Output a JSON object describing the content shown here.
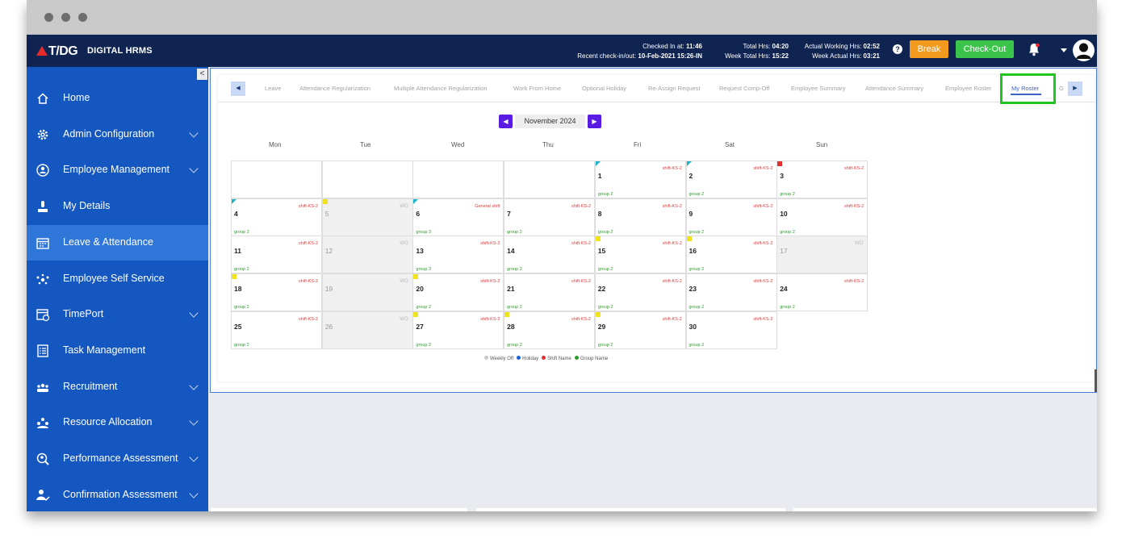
{
  "app": {
    "logo_text": "T/DG",
    "logo_subtitle": "DIGITAL HRMS"
  },
  "header": {
    "checked_in_label": "Checked In at:",
    "checked_in_value": "11:46",
    "recent_label": "Recent check-in/out:",
    "recent_value": "10-Feb-2021 15:26-IN",
    "total_hrs_label": "Total Hrs:",
    "total_hrs_value": "04:20",
    "week_total_label": "Week Total Hrs:",
    "week_total_value": "15:22",
    "actual_working_label": "Actual Working Hrs:",
    "actual_working_value": "02:52",
    "week_actual_label": "Week Actual Hrs:",
    "week_actual_value": "03:21",
    "help_glyph": "?",
    "break_label": "Break",
    "checkout_label": "Check-Out",
    "colors": {
      "bar": "#0f2451",
      "break": "#f39a1e",
      "checkout": "#3bc44a"
    }
  },
  "sidebar": {
    "collapse_glyph": "<",
    "items": [
      {
        "label": "Home",
        "icon": "home-icon",
        "chevron": false,
        "active": false
      },
      {
        "label": "Admin Configuration",
        "icon": "gear-icon",
        "chevron": true,
        "active": false
      },
      {
        "label": "Employee Management",
        "icon": "employee-icon",
        "chevron": true,
        "active": false
      },
      {
        "label": "My Details",
        "icon": "user-icon",
        "chevron": false,
        "active": false
      },
      {
        "label": "Leave & Attendance",
        "icon": "calendar-icon",
        "chevron": false,
        "active": true
      },
      {
        "label": "Employee Self Service",
        "icon": "people-network-icon",
        "chevron": false,
        "active": false
      },
      {
        "label": "TimePort",
        "icon": "calendar-clock-icon",
        "chevron": true,
        "active": false
      },
      {
        "label": "Task Management",
        "icon": "checklist-icon",
        "chevron": false,
        "active": false
      },
      {
        "label": "Recruitment",
        "icon": "group-icon",
        "chevron": true,
        "active": false
      },
      {
        "label": "Resource Allocation",
        "icon": "resource-icon",
        "chevron": true,
        "active": false
      },
      {
        "label": "Performance Assessment",
        "icon": "search-user-icon",
        "chevron": true,
        "active": false
      },
      {
        "label": "Confirmation Assessment",
        "icon": "user-check-icon",
        "chevron": true,
        "active": false
      }
    ]
  },
  "tabs": {
    "prev_glyph": "◀",
    "next_glyph": "▶",
    "items": [
      "Leave",
      "Attendance Regularization",
      "Multiple Attendance Regularization",
      "Work From Home",
      "Optional Holiday",
      "Re-Assign Request",
      "Request Comp-Off",
      "Employee Summary",
      "Attendance Summary",
      "Employee Roster",
      "My Roster",
      "G"
    ],
    "active": "My Roster"
  },
  "calendar": {
    "month_label": "November 2024",
    "prev_glyph": "◀",
    "next_glyph": "▶",
    "weekdays": [
      "Mon",
      "Tue",
      "Wed",
      "Thu",
      "Fri",
      "Sat",
      "Sun"
    ],
    "weekly_off_text": "WO",
    "days": [
      {
        "d": "1",
        "col": 4,
        "row": 0,
        "shift": "shift-KS-2",
        "group": "group 2",
        "flag": "tri"
      },
      {
        "d": "2",
        "col": 5,
        "row": 0,
        "shift": "shift-KS-2",
        "group": "group 2",
        "flag": "tri"
      },
      {
        "d": "3",
        "col": 6,
        "row": 0,
        "shift": "shift-KS-2",
        "group": "group 2",
        "flag": "red"
      },
      {
        "d": "4",
        "col": 0,
        "row": 1,
        "shift": "shift-KS-2",
        "group": "group 2",
        "flag": "tri"
      },
      {
        "d": "5",
        "col": 1,
        "row": 1,
        "off": true,
        "flag": "yellow"
      },
      {
        "d": "6",
        "col": 2,
        "row": 1,
        "shift": "General shift",
        "group": "group 3",
        "flag": "tri"
      },
      {
        "d": "7",
        "col": 3,
        "row": 1,
        "shift": "shift-KS-2",
        "group": "group 2"
      },
      {
        "d": "8",
        "col": 4,
        "row": 1,
        "shift": "shift-KS-2",
        "group": "group 2"
      },
      {
        "d": "9",
        "col": 5,
        "row": 1,
        "shift": "shift-KS-2",
        "group": "group 2"
      },
      {
        "d": "10",
        "col": 6,
        "row": 1,
        "shift": "shift-KS-2",
        "group": "group 2"
      },
      {
        "d": "11",
        "col": 0,
        "row": 2,
        "shift": "shift-KS-2",
        "group": "group 2"
      },
      {
        "d": "12",
        "col": 1,
        "row": 2,
        "off": true
      },
      {
        "d": "13",
        "col": 2,
        "row": 2,
        "shift": "shift-KS-2",
        "group": "group 3"
      },
      {
        "d": "14",
        "col": 3,
        "row": 2,
        "shift": "shift-KS-2",
        "group": "group 2"
      },
      {
        "d": "15",
        "col": 4,
        "row": 2,
        "shift": "shift-KS-2",
        "group": "group 2",
        "flag": "yellow"
      },
      {
        "d": "16",
        "col": 5,
        "row": 2,
        "shift": "shift-KS-2",
        "group": "group 2",
        "flag": "yellow"
      },
      {
        "d": "17",
        "col": 6,
        "row": 2,
        "off": true
      },
      {
        "d": "18",
        "col": 0,
        "row": 3,
        "shift": "shift-KS-2",
        "group": "group 2",
        "flag": "yellow"
      },
      {
        "d": "19",
        "col": 1,
        "row": 3,
        "off": true
      },
      {
        "d": "20",
        "col": 2,
        "row": 3,
        "shift": "shift-KS-2",
        "group": "group 2",
        "flag": "yellow"
      },
      {
        "d": "21",
        "col": 3,
        "row": 3,
        "shift": "shift-KS-2",
        "group": "group 2"
      },
      {
        "d": "22",
        "col": 4,
        "row": 3,
        "shift": "shift-KS-2",
        "group": "group 2"
      },
      {
        "d": "23",
        "col": 5,
        "row": 3,
        "shift": "shift-KS-2",
        "group": "group 2"
      },
      {
        "d": "24",
        "col": 6,
        "row": 3,
        "shift": "shift-KS-2",
        "group": "group 2"
      },
      {
        "d": "25",
        "col": 0,
        "row": 4,
        "shift": "shift-KS-2",
        "group": "group 2"
      },
      {
        "d": "26",
        "col": 1,
        "row": 4,
        "off": true
      },
      {
        "d": "27",
        "col": 2,
        "row": 4,
        "shift": "shift-KS-2",
        "group": "group 2",
        "flag": "yellow"
      },
      {
        "d": "28",
        "col": 3,
        "row": 4,
        "shift": "shift-KS-2",
        "group": "group 2",
        "flag": "yellow"
      },
      {
        "d": "29",
        "col": 4,
        "row": 4,
        "shift": "shift-KS-2",
        "group": "group 2",
        "flag": "yellow"
      },
      {
        "d": "30",
        "col": 5,
        "row": 4,
        "shift": "shift-KS-2",
        "group": "group 2"
      }
    ],
    "empty_cells": [
      {
        "col": 0,
        "row": 0
      },
      {
        "col": 1,
        "row": 0
      },
      {
        "col": 2,
        "row": 0
      },
      {
        "col": 3,
        "row": 0
      }
    ],
    "legend": [
      {
        "label": "Weekly Off",
        "color": "#c8c8c8"
      },
      {
        "label": "Holiday",
        "color": "#1f5fd6"
      },
      {
        "label": "Shift Name",
        "color": "#e23030"
      },
      {
        "label": "Group Name",
        "color": "#2e9b2e"
      }
    ]
  }
}
